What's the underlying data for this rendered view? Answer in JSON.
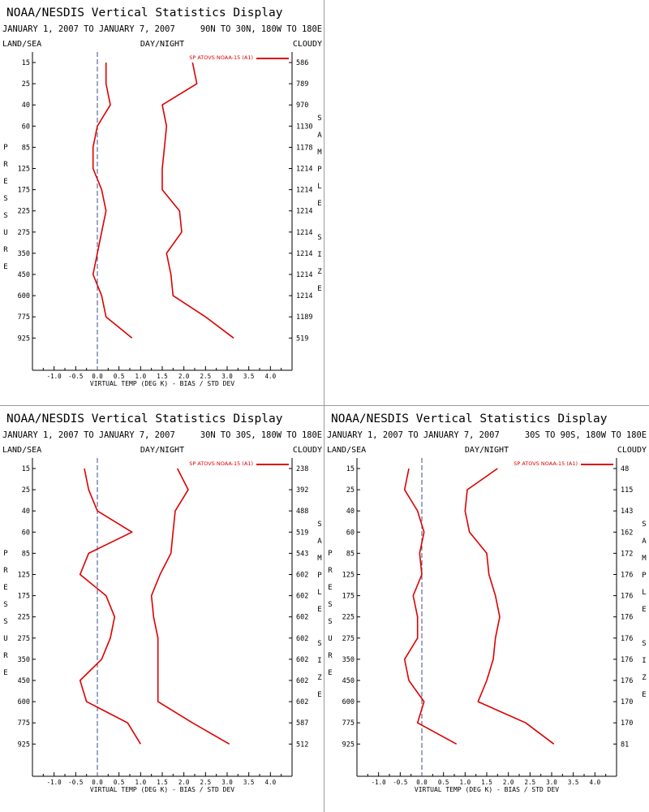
{
  "chart_data": [
    {
      "type": "line",
      "title": "NOAA/NESDIS Vertical Statistics Display",
      "date_range": "JANUARY 1, 2007 TO JANUARY 7, 2007",
      "region": "90N TO 30N, 180W TO 180E",
      "land_sea": "LAND/SEA",
      "day_night": "DAY/NIGHT",
      "cloudy": "CLOUDY",
      "ylabel": "PRESSURE",
      "y2label": "SAMPLE SIZE",
      "xlabel": "VIRTUAL TEMP (DEG K) - BIAS / STD DEV",
      "xlim": [
        -1.5,
        4.5
      ],
      "x_ticks": [
        "-1.0",
        "-0.5",
        "0.0",
        "0.5",
        "1.0",
        "1.5",
        "2.0",
        "2.5",
        "3.0",
        "3.5",
        "4.0"
      ],
      "legend": "SP ATOVS NOAA-15 (A1)",
      "legend_position": "top-right",
      "color": "#dd0000",
      "pressure_levels": [
        "15",
        "25",
        "40",
        "60",
        "85",
        "125",
        "175",
        "225",
        "275",
        "350",
        "450",
        "600",
        "775",
        "925"
      ],
      "sample_size": [
        "586",
        "789",
        "970",
        "1130",
        "1178",
        "1214",
        "1214",
        "1214",
        "1214",
        "1214",
        "1214",
        "1214",
        "1189",
        "519"
      ],
      "series": [
        {
          "name": "BIAS",
          "values": [
            0.2,
            0.2,
            0.3,
            0.0,
            -0.1,
            -0.1,
            0.1,
            0.2,
            0.1,
            0.0,
            -0.1,
            0.1,
            0.2,
            0.8
          ]
        },
        {
          "name": "STD DEV",
          "values": [
            2.2,
            2.3,
            1.5,
            1.6,
            1.55,
            1.5,
            1.5,
            1.9,
            1.95,
            1.6,
            1.7,
            1.75,
            2.5,
            3.15
          ]
        }
      ]
    },
    {
      "type": "line",
      "title": "NOAA/NESDIS Vertical Statistics Display",
      "date_range": "JANUARY 1, 2007 TO JANUARY 7, 2007",
      "region": "30N TO 30S, 180W TO 180E",
      "land_sea": "LAND/SEA",
      "day_night": "DAY/NIGHT",
      "cloudy": "CLOUDY",
      "ylabel": "PRESSURE",
      "y2label": "SAMPLE SIZE",
      "xlabel": "VIRTUAL TEMP (DEG K) - BIAS / STD DEV",
      "xlim": [
        -1.5,
        4.5
      ],
      "x_ticks": [
        "-1.0",
        "-0.5",
        "0.0",
        "0.5",
        "1.0",
        "1.5",
        "2.0",
        "2.5",
        "3.0",
        "3.5",
        "4.0"
      ],
      "legend": "SP ATOVS NOAA-15 (A1)",
      "legend_position": "top-right",
      "color": "#dd0000",
      "pressure_levels": [
        "15",
        "25",
        "40",
        "60",
        "85",
        "125",
        "175",
        "225",
        "275",
        "350",
        "450",
        "600",
        "775",
        "925"
      ],
      "sample_size": [
        "238",
        "392",
        "488",
        "519",
        "543",
        "602",
        "602",
        "602",
        "602",
        "602",
        "602",
        "602",
        "587",
        "512"
      ],
      "series": [
        {
          "name": "BIAS",
          "values": [
            -0.3,
            -0.2,
            0.0,
            0.8,
            -0.2,
            -0.4,
            0.2,
            0.4,
            0.3,
            0.1,
            -0.4,
            -0.25,
            0.7,
            1.0
          ]
        },
        {
          "name": "STD DEV",
          "values": [
            1.85,
            2.1,
            1.8,
            1.75,
            1.7,
            1.45,
            1.25,
            1.3,
            1.4,
            1.4,
            1.4,
            1.4,
            2.2,
            3.05
          ]
        }
      ]
    },
    {
      "type": "line",
      "title": "NOAA/NESDIS Vertical Statistics Display",
      "date_range": "JANUARY 1, 2007 TO JANUARY 7, 2007",
      "region": "30S TO 90S, 180W TO 180E",
      "land_sea": "LAND/SEA",
      "day_night": "DAY/NIGHT",
      "cloudy": "CLOUDY",
      "ylabel": "PRESSURE",
      "y2label": "SAMPLE SIZE",
      "xlabel": "VIRTUAL TEMP (DEG K) - BIAS / STD DEV",
      "xlim": [
        -1.5,
        4.5
      ],
      "x_ticks": [
        "-1.0",
        "-0.5",
        "0.0",
        "0.5",
        "1.0",
        "1.5",
        "2.0",
        "2.5",
        "3.0",
        "3.5",
        "4.0"
      ],
      "legend": "SP ATOVS NOAA-15 (A1)",
      "legend_position": "top-right",
      "color": "#dd0000",
      "pressure_levels": [
        "15",
        "25",
        "40",
        "60",
        "85",
        "125",
        "175",
        "225",
        "275",
        "350",
        "450",
        "600",
        "775",
        "925"
      ],
      "sample_size": [
        "48",
        "115",
        "143",
        "162",
        "172",
        "176",
        "176",
        "176",
        "176",
        "176",
        "176",
        "170",
        "170",
        "81"
      ],
      "series": [
        {
          "name": "BIAS",
          "values": [
            -0.3,
            -0.4,
            -0.1,
            0.05,
            -0.05,
            0.0,
            -0.2,
            -0.1,
            -0.1,
            -0.4,
            -0.3,
            0.05,
            -0.1,
            0.8
          ]
        },
        {
          "name": "STD DEV",
          "values": [
            1.75,
            1.05,
            1.0,
            1.1,
            1.5,
            1.55,
            1.7,
            1.8,
            1.7,
            1.65,
            1.5,
            1.3,
            2.4,
            3.05
          ]
        }
      ]
    }
  ]
}
